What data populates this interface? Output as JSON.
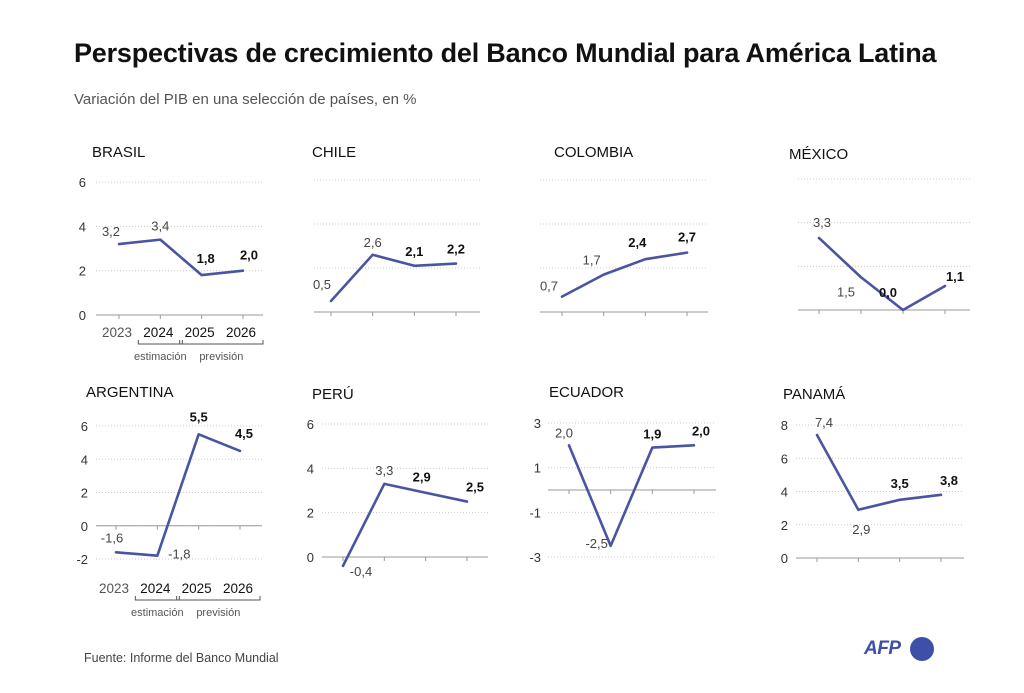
{
  "title": "Perspectivas de crecimiento del Banco Mundial para América Latina",
  "subtitle": "Variación del PIB en una selección de países, en %",
  "source": "Fuente: Informe del Banco Mundial",
  "logo": "AFP",
  "colors": {
    "line": "#4a55a2",
    "grid": "#cccccc",
    "axis": "#999999",
    "text": "#222222"
  },
  "chart_data": [
    {
      "type": "line",
      "title": "BRASIL",
      "x": [
        "2023",
        "2024",
        "2025",
        "2026"
      ],
      "values": [
        3.2,
        3.4,
        1.8,
        2.0
      ],
      "labels": [
        "3,2",
        "3,4",
        "1,8",
        "2,0"
      ],
      "ylim": [
        0,
        6
      ],
      "yticks": [
        0,
        2,
        4,
        6
      ],
      "ytick_labels": [
        "0",
        "2",
        "4",
        "6"
      ],
      "show_x_labels": true,
      "bracket_labels": [
        "estimación",
        "previsión"
      ]
    },
    {
      "type": "line",
      "title": "CHILE",
      "x": [
        "2023",
        "2024",
        "2025",
        "2026"
      ],
      "values": [
        0.5,
        2.6,
        2.1,
        2.2
      ],
      "labels": [
        "0,5",
        "2,6",
        "2,1",
        "2,2"
      ],
      "ylim": [
        0,
        6
      ],
      "yticks": [],
      "ytick_labels": [],
      "show_x_labels": false
    },
    {
      "type": "line",
      "title": "COLOMBIA",
      "x": [
        "2023",
        "2024",
        "2025",
        "2026"
      ],
      "values": [
        0.7,
        1.7,
        2.4,
        2.7
      ],
      "labels": [
        "0,7",
        "1,7",
        "2,4",
        "2,7"
      ],
      "ylim": [
        0,
        6
      ],
      "yticks": [],
      "ytick_labels": [],
      "show_x_labels": false
    },
    {
      "type": "line",
      "title": "MÉXICO",
      "x": [
        "2023",
        "2024",
        "2025",
        "2026"
      ],
      "values": [
        3.3,
        1.5,
        0.0,
        1.1
      ],
      "labels": [
        "3,3",
        "1,5",
        "0,0",
        "1,1"
      ],
      "ylim": [
        0,
        6
      ],
      "yticks": [],
      "ytick_labels": [],
      "show_x_labels": false
    },
    {
      "type": "line",
      "title": "ARGENTINA",
      "x": [
        "2023",
        "2024",
        "2025",
        "2026"
      ],
      "values": [
        -1.6,
        -1.8,
        5.5,
        4.5
      ],
      "labels": [
        "-1,6",
        "-1,8",
        "5,5",
        "4,5"
      ],
      "ylim": [
        -2,
        6
      ],
      "yticks": [
        -2,
        0,
        2,
        4,
        6
      ],
      "ytick_labels": [
        "-2",
        "0",
        "2",
        "4",
        "6"
      ],
      "show_x_labels": true,
      "bracket_labels": [
        "estimación",
        "previsión"
      ]
    },
    {
      "type": "line",
      "title": "PERÚ",
      "x": [
        "2023",
        "2024",
        "2025",
        "2026"
      ],
      "values": [
        -0.4,
        3.3,
        2.9,
        2.5
      ],
      "labels": [
        "-0,4",
        "3,3",
        "2,9",
        "2,5"
      ],
      "ylim": [
        0,
        6
      ],
      "yticks": [
        0,
        2,
        4,
        6
      ],
      "ytick_labels": [
        "0",
        "2",
        "4",
        "6"
      ],
      "show_x_labels": false
    },
    {
      "type": "line",
      "title": "ECUADOR",
      "x": [
        "2023",
        "2024",
        "2025",
        "2026"
      ],
      "values": [
        2.0,
        -2.5,
        1.9,
        2.0
      ],
      "labels": [
        "2,0",
        "-2,5",
        "1,9",
        "2,0"
      ],
      "ylim": [
        -3,
        3
      ],
      "yticks": [
        -3,
        -1,
        1,
        3
      ],
      "ytick_labels": [
        "-3",
        "-1",
        "1",
        "3"
      ],
      "show_x_labels": false
    },
    {
      "type": "line",
      "title": "PANAMÁ",
      "x": [
        "2023",
        "2024",
        "2025",
        "2026"
      ],
      "values": [
        7.4,
        2.9,
        3.5,
        3.8
      ],
      "labels": [
        "7,4",
        "2,9",
        "3,5",
        "3,8"
      ],
      "ylim": [
        0,
        8
      ],
      "yticks": [
        0,
        2,
        4,
        6,
        8
      ],
      "ytick_labels": [
        "0",
        "2",
        "4",
        "6",
        "8"
      ],
      "show_x_labels": false
    }
  ]
}
